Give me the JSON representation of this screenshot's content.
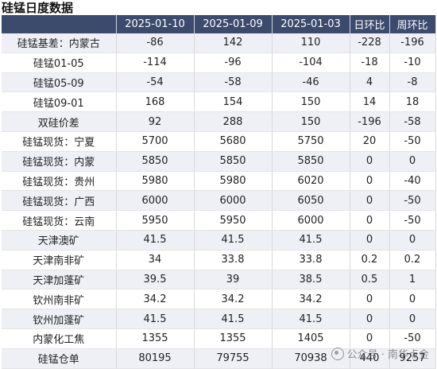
{
  "title": "硅锰日度数据",
  "table": {
    "headers": [
      "",
      "2025-01-10",
      "2025-01-09",
      "2025-01-03",
      "日环比",
      "周环比"
    ],
    "rows": [
      [
        "硅锰基差：内蒙古",
        "-86",
        "142",
        "110",
        "-228",
        "-196"
      ],
      [
        "硅锰01-05",
        "-114",
        "-96",
        "-104",
        "-18",
        "-10"
      ],
      [
        "硅锰05-09",
        "-54",
        "-58",
        "-46",
        "4",
        "-8"
      ],
      [
        "硅锰09-01",
        "168",
        "154",
        "150",
        "14",
        "18"
      ],
      [
        "双硅价差",
        "92",
        "288",
        "150",
        "-196",
        "-58"
      ],
      [
        "硅锰现货：宁夏",
        "5700",
        "5680",
        "5750",
        "20",
        "-50"
      ],
      [
        "硅锰现货：内蒙",
        "5850",
        "5850",
        "5850",
        "0",
        "0"
      ],
      [
        "硅锰现货：贵州",
        "5980",
        "5980",
        "6020",
        "0",
        "-40"
      ],
      [
        "硅锰现货：广西",
        "6000",
        "6000",
        "6050",
        "0",
        "-50"
      ],
      [
        "硅锰现货：云南",
        "5950",
        "5950",
        "6000",
        "0",
        "-50"
      ],
      [
        "天津澳矿",
        "41.5",
        "41.5",
        "41.5",
        "0",
        "0"
      ],
      [
        "天津南非矿",
        "34",
        "33.8",
        "33.8",
        "0.2",
        "0.2"
      ],
      [
        "天津加蓬矿",
        "39.5",
        "39",
        "38.5",
        "0.5",
        "1"
      ],
      [
        "钦州南非矿",
        "34.2",
        "34.2",
        "34.2",
        "0",
        "0"
      ],
      [
        "钦州加蓬矿",
        "41.5",
        "41.5",
        "41.5",
        "0",
        "0"
      ],
      [
        "内蒙化工焦",
        "1355",
        "1355",
        "1405",
        "0",
        "-50"
      ],
      [
        "硅锰仓单",
        "80195",
        "79755",
        "70938",
        "440",
        "9257"
      ]
    ]
  },
  "watermark": {
    "icon": "wechat-official-account-icon",
    "text": "公众号 · 南华点金"
  },
  "colors": {
    "header_bg": "#3c4a6e",
    "header_text": "#ffffff",
    "row_alt_bg": "#eef0f6"
  }
}
